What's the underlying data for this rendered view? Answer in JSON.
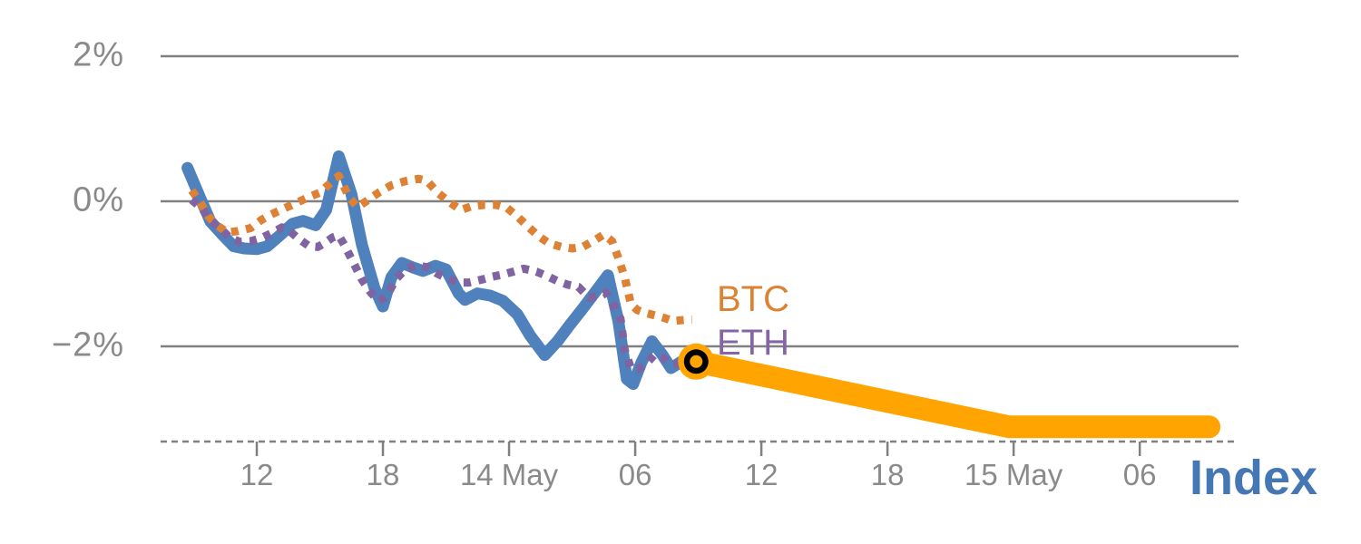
{
  "chart_data": {
    "type": "line",
    "title": "",
    "x_axis": {
      "unit": "time",
      "t_unit_note": "t = hours after 06:00 on 13 May (inferred from 6-hour tick spacing)",
      "ticks": [
        {
          "t": 6,
          "label": "12"
        },
        {
          "t": 12,
          "label": "18"
        },
        {
          "t": 18,
          "label": "14 May"
        },
        {
          "t": 24,
          "label": "06"
        },
        {
          "t": 30,
          "label": "12"
        },
        {
          "t": 36,
          "label": "18"
        },
        {
          "t": 42,
          "label": "15 May"
        },
        {
          "t": 48,
          "label": "06"
        }
      ]
    },
    "y_axis": {
      "unit": "%",
      "ticks": [
        {
          "v": 2,
          "label": "2%"
        },
        {
          "v": 0,
          "label": "0%"
        },
        {
          "v": -2,
          "label": "−2%"
        }
      ],
      "range_shown": [
        -3.4,
        2.4
      ],
      "gridlines": true
    },
    "legend_position": "inline-end-of-line",
    "labels": {
      "btc": "BTC",
      "eth": "ETH",
      "index": "Index"
    },
    "colors": {
      "index_line": "#4f81bd",
      "btc_line": "#dd8134",
      "eth_line": "#8064a2",
      "forecast_line": "#ffa400",
      "marker_ring": "#000000",
      "marker_fill": "#ffa400",
      "grid": "#808080",
      "axis_text": "#8a8a8a"
    },
    "series": [
      {
        "name": "Index",
        "style": "solid",
        "width": 13,
        "color": "#4f81bd",
        "points": [
          [
            2.7,
            0.46
          ],
          [
            3.3,
            0.05
          ],
          [
            3.8,
            -0.28
          ],
          [
            4.4,
            -0.47
          ],
          [
            4.9,
            -0.62
          ],
          [
            5.4,
            -0.65
          ],
          [
            6.0,
            -0.66
          ],
          [
            6.5,
            -0.62
          ],
          [
            7.1,
            -0.47
          ],
          [
            7.7,
            -0.31
          ],
          [
            8.2,
            -0.27
          ],
          [
            8.8,
            -0.33
          ],
          [
            9.3,
            -0.12
          ],
          [
            9.9,
            0.62
          ],
          [
            10.5,
            0.1
          ],
          [
            11.0,
            -0.6
          ],
          [
            11.6,
            -1.2
          ],
          [
            12.0,
            -1.45
          ],
          [
            12.4,
            -1.05
          ],
          [
            12.9,
            -0.85
          ],
          [
            13.4,
            -0.91
          ],
          [
            13.9,
            -0.96
          ],
          [
            14.5,
            -0.89
          ],
          [
            15.0,
            -0.94
          ],
          [
            15.6,
            -1.27
          ],
          [
            15.9,
            -1.36
          ],
          [
            16.5,
            -1.27
          ],
          [
            17.1,
            -1.3
          ],
          [
            17.7,
            -1.37
          ],
          [
            18.4,
            -1.56
          ],
          [
            19.0,
            -1.85
          ],
          [
            19.7,
            -2.12
          ],
          [
            20.3,
            -1.93
          ],
          [
            20.9,
            -1.7
          ],
          [
            21.5,
            -1.48
          ],
          [
            22.1,
            -1.25
          ],
          [
            22.7,
            -1.02
          ],
          [
            23.2,
            -1.65
          ],
          [
            23.6,
            -2.45
          ],
          [
            23.9,
            -2.52
          ],
          [
            24.3,
            -2.22
          ],
          [
            24.8,
            -1.93
          ],
          [
            25.3,
            -2.12
          ],
          [
            25.7,
            -2.3
          ],
          [
            26.2,
            -2.21
          ],
          [
            26.9,
            -2.21
          ]
        ]
      },
      {
        "name": "BTC",
        "style": "dotted",
        "width": 9,
        "color": "#dd8134",
        "points": [
          [
            2.9,
            0.15
          ],
          [
            3.3,
            -0.01
          ],
          [
            3.7,
            -0.21
          ],
          [
            4.1,
            -0.33
          ],
          [
            4.6,
            -0.43
          ],
          [
            5.1,
            -0.41
          ],
          [
            5.7,
            -0.37
          ],
          [
            6.2,
            -0.26
          ],
          [
            6.7,
            -0.18
          ],
          [
            7.3,
            -0.1
          ],
          [
            7.9,
            -0.02
          ],
          [
            8.5,
            0.06
          ],
          [
            9.0,
            0.12
          ],
          [
            9.5,
            0.25
          ],
          [
            9.9,
            0.35
          ],
          [
            10.4,
            0.05
          ],
          [
            10.8,
            -0.08
          ],
          [
            11.3,
            0.02
          ],
          [
            11.8,
            0.12
          ],
          [
            12.4,
            0.22
          ],
          [
            13.1,
            0.28
          ],
          [
            13.7,
            0.31
          ],
          [
            14.1,
            0.28
          ],
          [
            14.6,
            0.12
          ],
          [
            15.2,
            -0.02
          ],
          [
            15.7,
            -0.12
          ],
          [
            16.2,
            -0.07
          ],
          [
            16.8,
            -0.05
          ],
          [
            17.4,
            -0.05
          ],
          [
            17.9,
            -0.09
          ],
          [
            18.4,
            -0.21
          ],
          [
            18.9,
            -0.35
          ],
          [
            19.4,
            -0.48
          ],
          [
            19.9,
            -0.58
          ],
          [
            20.5,
            -0.63
          ],
          [
            21.0,
            -0.65
          ],
          [
            21.5,
            -0.63
          ],
          [
            22.0,
            -0.55
          ],
          [
            22.5,
            -0.46
          ],
          [
            22.9,
            -0.55
          ],
          [
            23.2,
            -0.78
          ],
          [
            23.5,
            -1.05
          ],
          [
            23.8,
            -1.42
          ],
          [
            24.1,
            -1.5
          ],
          [
            24.5,
            -1.54
          ],
          [
            24.9,
            -1.57
          ],
          [
            25.4,
            -1.61
          ],
          [
            25.8,
            -1.65
          ],
          [
            26.2,
            -1.64
          ],
          [
            26.7,
            -1.63
          ]
        ]
      },
      {
        "name": "ETH",
        "style": "dotted",
        "width": 9,
        "color": "#8064a2",
        "points": [
          [
            2.9,
            0.02
          ],
          [
            3.4,
            -0.1
          ],
          [
            3.8,
            -0.27
          ],
          [
            4.3,
            -0.38
          ],
          [
            4.7,
            -0.5
          ],
          [
            5.2,
            -0.56
          ],
          [
            5.7,
            -0.55
          ],
          [
            6.2,
            -0.51
          ],
          [
            6.7,
            -0.44
          ],
          [
            7.2,
            -0.36
          ],
          [
            7.6,
            -0.42
          ],
          [
            8.0,
            -0.52
          ],
          [
            8.5,
            -0.62
          ],
          [
            8.9,
            -0.63
          ],
          [
            9.2,
            -0.58
          ],
          [
            9.6,
            -0.5
          ],
          [
            9.9,
            -0.47
          ],
          [
            10.2,
            -0.62
          ],
          [
            10.6,
            -0.85
          ],
          [
            11.0,
            -1.08
          ],
          [
            11.4,
            -1.25
          ],
          [
            11.8,
            -1.38
          ],
          [
            12.2,
            -1.3
          ],
          [
            12.6,
            -1.08
          ],
          [
            13.1,
            -0.93
          ],
          [
            13.6,
            -0.88
          ],
          [
            14.1,
            -0.91
          ],
          [
            14.6,
            -1.0
          ],
          [
            15.1,
            -1.07
          ],
          [
            15.6,
            -1.12
          ],
          [
            16.1,
            -1.12
          ],
          [
            16.7,
            -1.08
          ],
          [
            17.2,
            -1.04
          ],
          [
            17.7,
            -1.01
          ],
          [
            18.2,
            -0.97
          ],
          [
            18.7,
            -0.93
          ],
          [
            19.3,
            -0.97
          ],
          [
            19.8,
            -1.03
          ],
          [
            20.3,
            -1.1
          ],
          [
            20.8,
            -1.15
          ],
          [
            21.3,
            -1.18
          ],
          [
            21.8,
            -1.33
          ],
          [
            22.3,
            -1.3
          ],
          [
            22.6,
            -1.26
          ],
          [
            23.0,
            -1.45
          ],
          [
            23.3,
            -1.62
          ],
          [
            23.5,
            -2.05
          ],
          [
            23.8,
            -2.3
          ],
          [
            24.1,
            -2.32
          ],
          [
            24.5,
            -2.25
          ],
          [
            24.9,
            -2.12
          ],
          [
            25.3,
            -2.15
          ],
          [
            25.7,
            -2.25
          ],
          [
            26.1,
            -2.24
          ]
        ]
      },
      {
        "name": "Index forecast",
        "style": "solid",
        "width": 25,
        "color": "#ffa400",
        "points": [
          [
            26.9,
            -2.21
          ],
          [
            41.8,
            -3.11
          ],
          [
            51.3,
            -3.11
          ]
        ]
      }
    ],
    "marker": {
      "series": "Index",
      "t": 26.9,
      "v": -2.21,
      "shape": "ringed-circle"
    }
  }
}
